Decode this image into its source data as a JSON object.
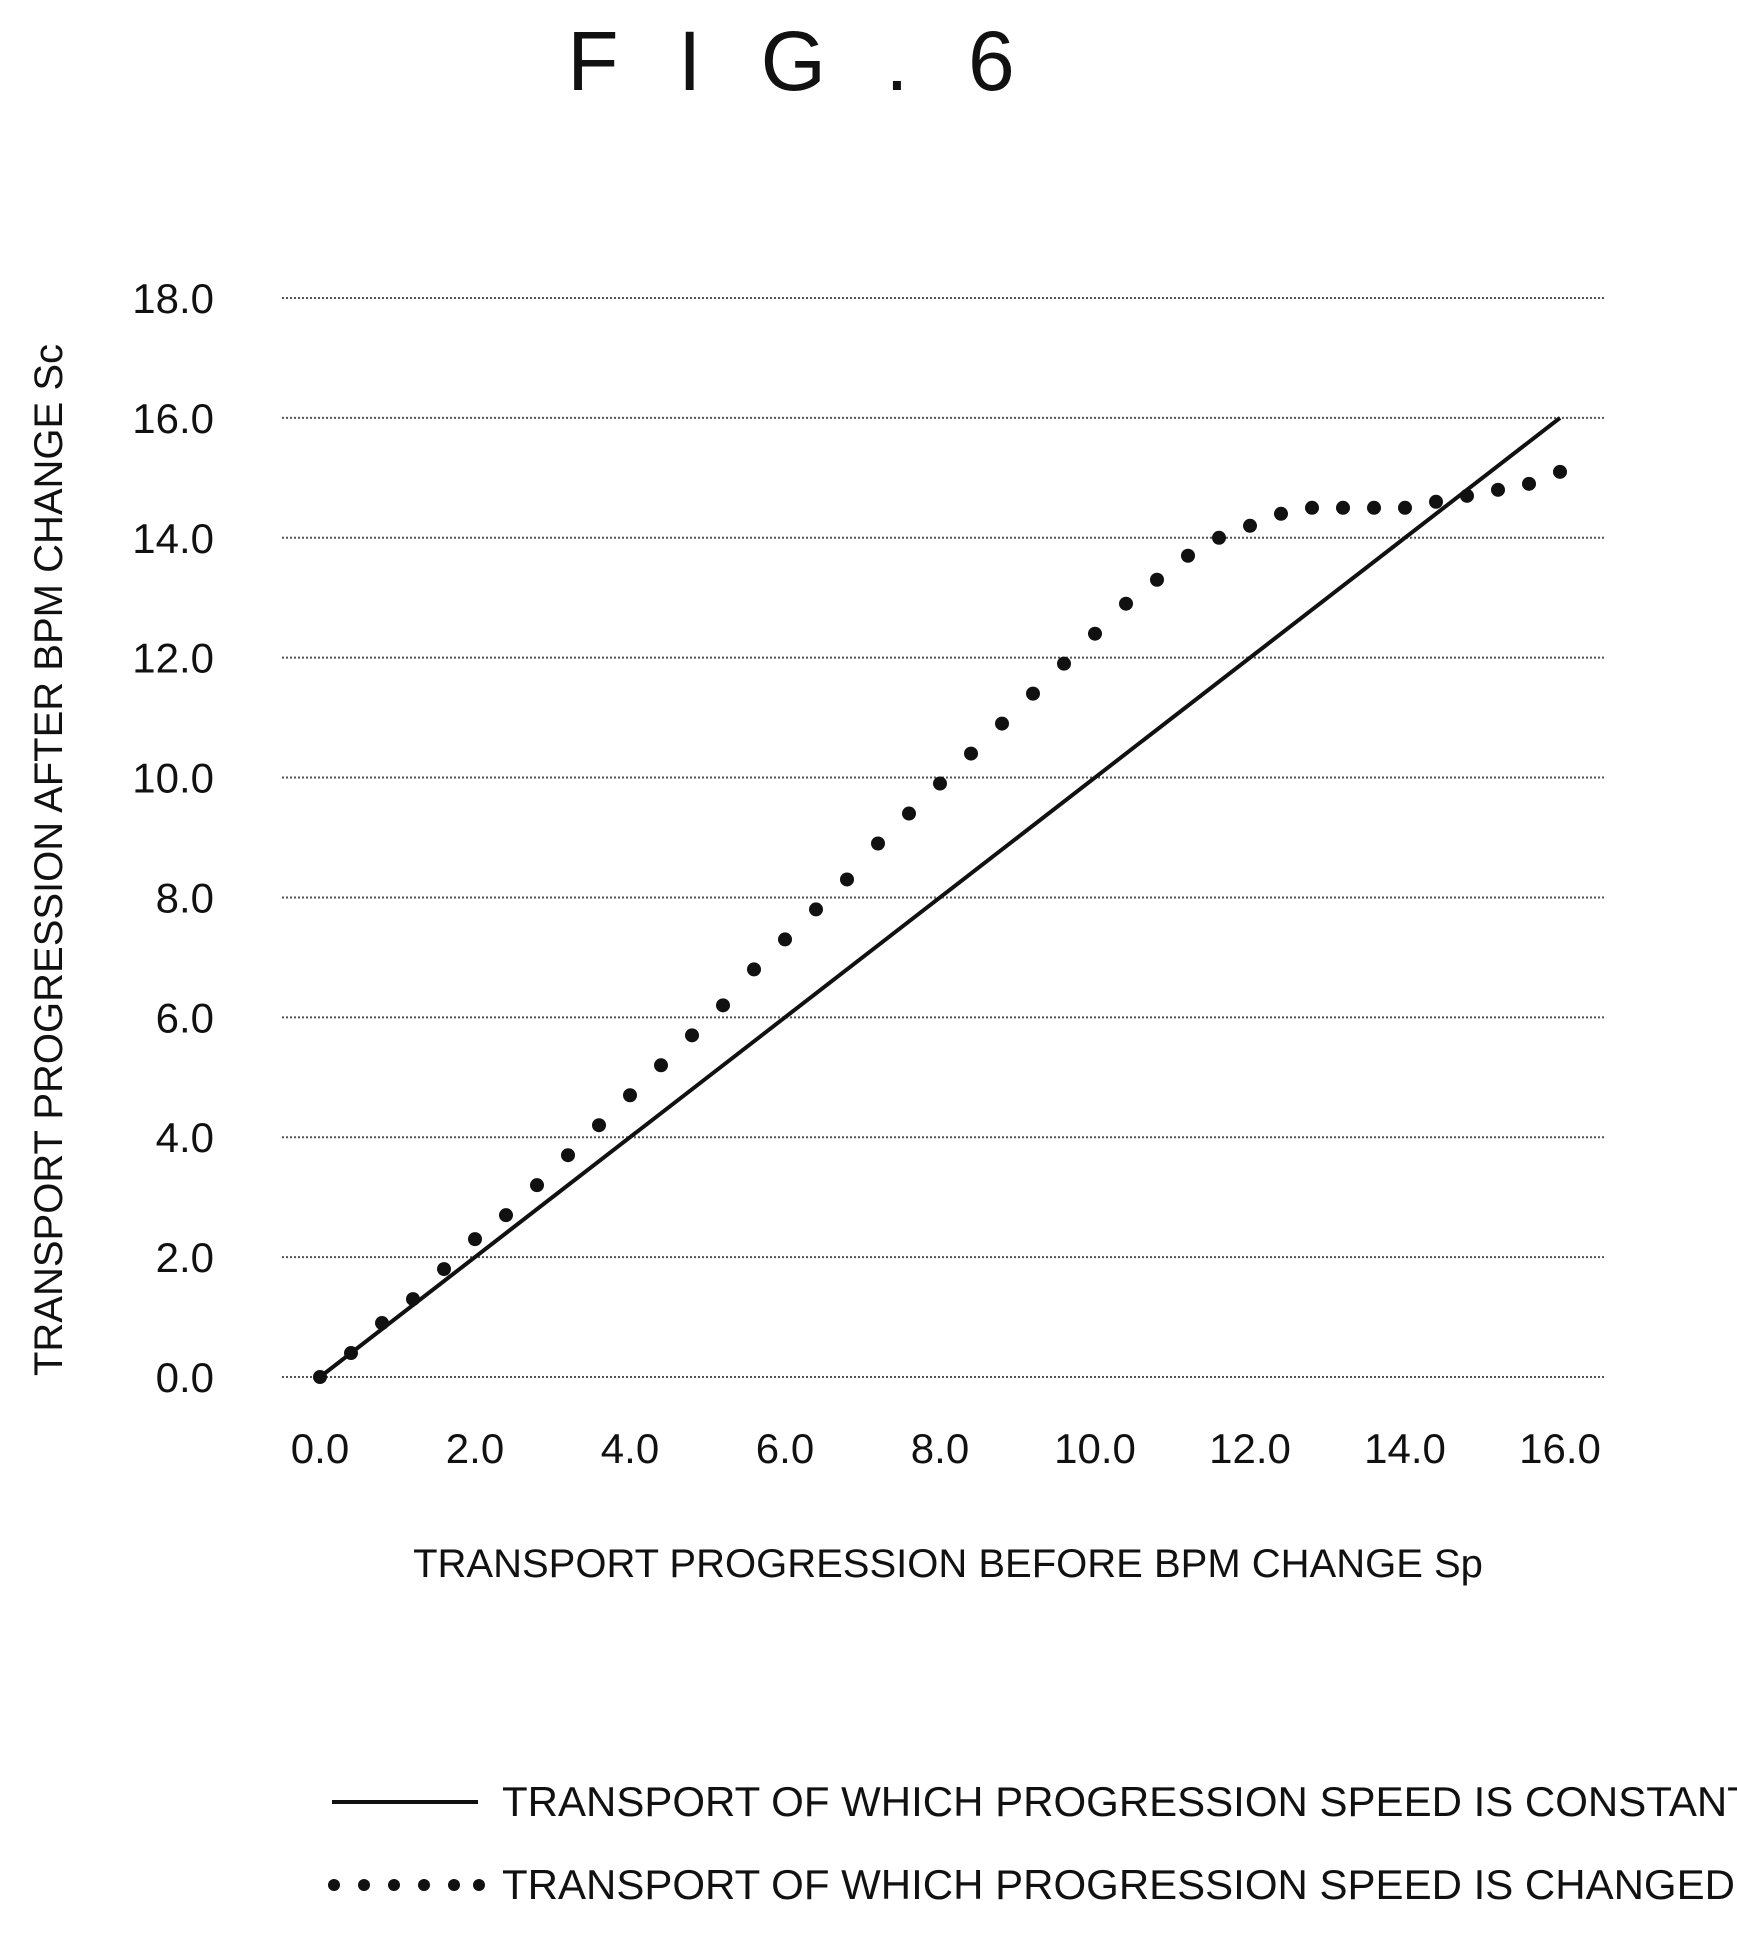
{
  "figure": {
    "title": "F I G . 6"
  },
  "chart_data": {
    "type": "line",
    "title": "",
    "xlabel": "TRANSPORT PROGRESSION BEFORE BPM CHANGE Sp",
    "ylabel": "TRANSPORT PROGRESSION AFTER BPM CHANGE Sc",
    "xlim": [
      0,
      16
    ],
    "ylim": [
      0,
      18
    ],
    "x_ticks": [
      "0.0",
      "2.0",
      "4.0",
      "6.0",
      "8.0",
      "10.0",
      "12.0",
      "14.0",
      "16.0"
    ],
    "y_ticks": [
      "0.0",
      "2.0",
      "4.0",
      "6.0",
      "8.0",
      "10.0",
      "12.0",
      "14.0",
      "16.0",
      "18.0"
    ],
    "grid": "horizontal",
    "legend_position": "bottom",
    "series": [
      {
        "name": "TRANSPORT OF WHICH PROGRESSION SPEED IS CONSTANT",
        "style": "solid",
        "x": [
          0,
          16
        ],
        "y": [
          0,
          16
        ]
      },
      {
        "name": "TRANSPORT OF WHICH PROGRESSION SPEED IS CHANGED",
        "style": "dotted",
        "x": [
          0,
          0.4,
          0.8,
          1.2,
          1.6,
          2.0,
          2.4,
          2.8,
          3.2,
          3.6,
          4.0,
          4.4,
          4.8,
          5.2,
          5.6,
          6.0,
          6.4,
          6.8,
          7.2,
          7.6,
          8.0,
          8.4,
          8.8,
          9.2,
          9.6,
          10.0,
          10.4,
          10.8,
          11.2,
          11.6,
          12.0,
          12.4,
          12.8,
          13.2,
          13.6,
          14.0,
          14.4,
          14.8,
          15.2,
          15.6,
          16.0
        ],
        "y": [
          0,
          0.4,
          0.9,
          1.3,
          1.8,
          2.3,
          2.7,
          3.2,
          3.7,
          4.2,
          4.7,
          5.2,
          5.7,
          6.2,
          6.8,
          7.3,
          7.8,
          8.3,
          8.9,
          9.4,
          9.9,
          10.4,
          10.9,
          11.4,
          11.9,
          12.4,
          12.9,
          13.3,
          13.7,
          14.0,
          14.2,
          14.4,
          14.5,
          14.5,
          14.5,
          14.5,
          14.6,
          14.7,
          14.8,
          14.9,
          15.1
        ]
      }
    ]
  }
}
